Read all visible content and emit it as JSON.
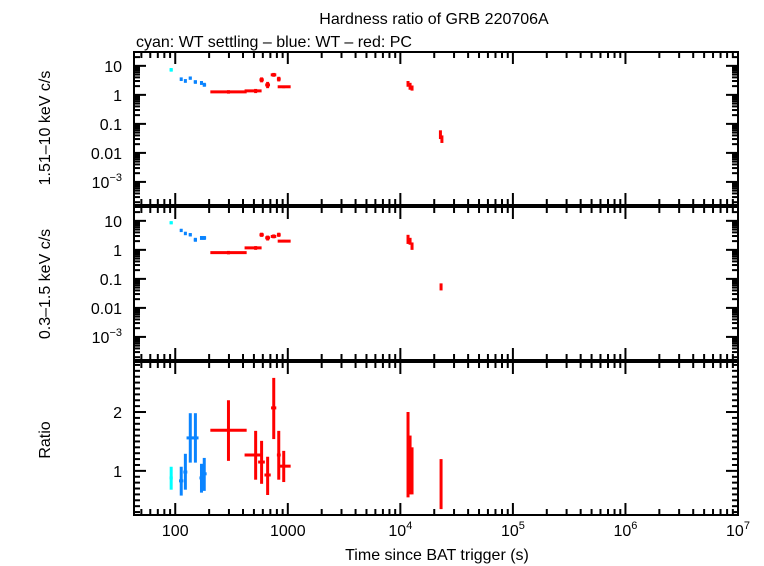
{
  "chart_data": {
    "type": "scatter",
    "title": "Hardness ratio of GRB 220706A",
    "subtitle": "cyan: WT settling – blue: WT – red: PC",
    "xlabel": "Time since BAT trigger (s)",
    "xscale": "log",
    "xlim": [
      43,
      10000000
    ],
    "x_ticks": [
      {
        "value": 100,
        "base": "100",
        "exp": ""
      },
      {
        "value": 1000,
        "base": "1000",
        "exp": ""
      },
      {
        "value": 10000,
        "base": "10",
        "exp": "4"
      },
      {
        "value": 100000,
        "base": "10",
        "exp": "5"
      },
      {
        "value": 1000000,
        "base": "10",
        "exp": "6"
      },
      {
        "value": 10000000,
        "base": "10",
        "exp": "7"
      }
    ],
    "colors": {
      "wt_settling": "#00ffff",
      "wt": "#0a84ff",
      "pc": "#ff0000",
      "axes": "#000000"
    },
    "panels": [
      {
        "ylabel": "1.51–10 keV c/s",
        "yscale": "log",
        "ylim": [
          0.00016,
          30
        ],
        "y_ticks": [
          {
            "value": 10,
            "base": "10",
            "exp": ""
          },
          {
            "value": 1,
            "base": "1",
            "exp": ""
          },
          {
            "value": 0.1,
            "base": "0.1",
            "exp": ""
          },
          {
            "value": 0.01,
            "base": "0.01",
            "exp": ""
          },
          {
            "value": 0.001,
            "base": "10",
            "exp": "−3"
          }
        ],
        "series": [
          {
            "mode": "wt_settling",
            "points": [
              [
                92,
                89,
                95,
                7.3,
                6.3,
                8.4
              ]
            ]
          },
          {
            "mode": "wt",
            "points": [
              [
                113,
                110,
                116,
                3.5,
                3.0,
                4.0
              ],
              [
                123,
                120,
                126,
                3.0,
                2.6,
                3.5
              ],
              [
                136,
                132,
                140,
                3.8,
                3.3,
                4.3
              ],
              [
                151,
                146,
                156,
                2.8,
                2.4,
                3.2
              ],
              [
                171,
                166,
                176,
                2.6,
                2.2,
                3.0
              ],
              [
                181,
                176,
                188,
                2.2,
                1.9,
                2.6
              ]
            ]
          },
          {
            "mode": "pc",
            "points": [
              [
                297,
                205,
                431,
                1.27,
                1.1,
                1.45
              ],
              [
                518,
                413,
                585,
                1.37,
                1.15,
                1.6
              ],
              [
                585,
                560,
                612,
                3.3,
                2.7,
                4.0
              ],
              [
                662,
                630,
                695,
                2.2,
                1.7,
                2.8
              ],
              [
                750,
                705,
                790,
                4.9,
                4.2,
                5.7
              ],
              [
                831,
                800,
                865,
                3.5,
                2.9,
                4.2
              ],
              [
                920,
                813,
                1060,
                1.9,
                1.7,
                2.1
              ],
              [
                11700,
                11500,
                11900,
                2.4,
                1.9,
                3.0
              ],
              [
                12200,
                12000,
                12400,
                2.0,
                1.5,
                2.6
              ],
              [
                12700,
                12500,
                12900,
                1.7,
                1.4,
                2.1
              ],
              [
                22700,
                22400,
                23000,
                0.045,
                0.03,
                0.06
              ],
              [
                23400,
                23100,
                23700,
                0.03,
                0.022,
                0.04
              ]
            ]
          }
        ]
      },
      {
        "ylabel": "0.3–1.5 keV c/s",
        "yscale": "log",
        "ylim": [
          0.00016,
          30
        ],
        "y_ticks": [
          {
            "value": 10,
            "base": "10",
            "exp": ""
          },
          {
            "value": 1,
            "base": "1",
            "exp": ""
          },
          {
            "value": 0.1,
            "base": "0.1",
            "exp": ""
          },
          {
            "value": 0.01,
            "base": "0.01",
            "exp": ""
          },
          {
            "value": 0.001,
            "base": "10",
            "exp": "−3"
          }
        ],
        "series": [
          {
            "mode": "wt_settling",
            "points": [
              [
                92,
                89,
                95,
                8.6,
                7.6,
                9.7
              ]
            ]
          },
          {
            "mode": "wt",
            "points": [
              [
                113,
                110,
                116,
                4.7,
                4.1,
                5.3
              ],
              [
                123,
                120,
                126,
                3.7,
                3.2,
                4.2
              ],
              [
                136,
                132,
                140,
                3.3,
                2.9,
                3.8
              ],
              [
                151,
                146,
                156,
                2.2,
                1.9,
                2.6
              ],
              [
                171,
                166,
                176,
                2.6,
                2.2,
                3.0
              ],
              [
                181,
                176,
                188,
                2.6,
                2.2,
                3.0
              ]
            ]
          },
          {
            "mode": "pc",
            "points": [
              [
                297,
                205,
                431,
                0.8,
                0.7,
                0.92
              ],
              [
                518,
                413,
                585,
                1.17,
                1.0,
                1.35
              ],
              [
                585,
                560,
                612,
                3.3,
                2.8,
                3.9
              ],
              [
                662,
                630,
                695,
                2.6,
                2.1,
                3.1
              ],
              [
                750,
                705,
                790,
                2.9,
                2.5,
                3.4
              ],
              [
                831,
                800,
                865,
                3.3,
                2.8,
                3.9
              ],
              [
                920,
                813,
                1060,
                2.0,
                1.8,
                2.2
              ],
              [
                11700,
                11500,
                11900,
                2.3,
                1.6,
                3.3
              ],
              [
                12200,
                12000,
                12400,
                2.0,
                1.5,
                2.6
              ],
              [
                12700,
                12500,
                12900,
                1.4,
                1.0,
                1.8
              ],
              [
                23000,
                22700,
                23300,
                0.055,
                0.04,
                0.07
              ]
            ]
          }
        ]
      },
      {
        "ylabel": "Ratio",
        "yscale": "linear",
        "ylim": [
          0.25,
          2.85
        ],
        "y_ticks": [
          {
            "value": 1,
            "base": "1",
            "exp": ""
          },
          {
            "value": 2,
            "base": "2",
            "exp": ""
          }
        ],
        "series": [
          {
            "mode": "wt_settling",
            "points": [
              [
                92,
                89,
                95,
                0.88,
                0.68,
                1.07
              ]
            ]
          },
          {
            "mode": "wt",
            "points": [
              [
                113,
                108,
                118,
                0.83,
                0.58,
                1.07
              ],
              [
                123,
                118,
                128,
                0.98,
                0.68,
                1.29
              ],
              [
                136,
                126,
                146,
                1.56,
                1.14,
                1.98
              ],
              [
                151,
                141,
                161,
                1.56,
                1.14,
                1.98
              ],
              [
                171,
                164,
                178,
                0.88,
                0.63,
                1.12
              ],
              [
                181,
                175,
                190,
                0.95,
                0.66,
                1.22
              ]
            ]
          },
          {
            "mode": "pc",
            "points": [
              [
                297,
                205,
                431,
                1.69,
                1.17,
                2.2
              ],
              [
                518,
                413,
                585,
                1.27,
                0.85,
                1.68
              ],
              [
                585,
                545,
                625,
                1.15,
                0.78,
                1.51
              ],
              [
                662,
                620,
                705,
                0.93,
                0.59,
                1.24
              ],
              [
                750,
                710,
                790,
                2.07,
                1.54,
                2.58
              ],
              [
                831,
                800,
                865,
                1.27,
                0.85,
                1.68
              ],
              [
                920,
                813,
                1060,
                1.08,
                0.81,
                1.34
              ],
              [
                11700,
                11500,
                11900,
                1.2,
                0.55,
                2.0
              ],
              [
                12200,
                12000,
                12400,
                1.1,
                0.6,
                1.6
              ],
              [
                12700,
                12500,
                12900,
                1.0,
                0.6,
                1.4
              ],
              [
                23000,
                22700,
                23300,
                0.7,
                0.35,
                1.2
              ]
            ]
          }
        ]
      }
    ]
  }
}
